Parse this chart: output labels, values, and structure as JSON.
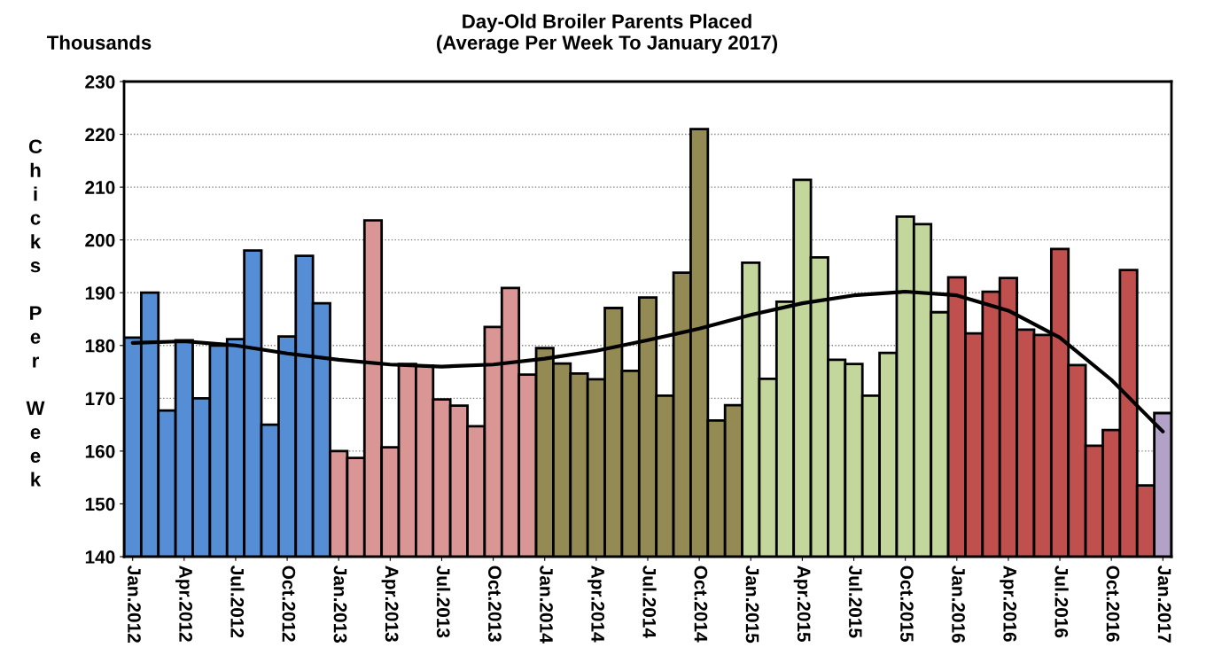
{
  "chart_data": {
    "type": "bar",
    "title": "Day-Old Broiler Parents Placed\n(Average Per Week To January 2017)",
    "ylabel": "Chicks Per Week",
    "annotations": [
      "Thousands"
    ],
    "categories": [
      "Jan.2012",
      null,
      null,
      "Apr.2012",
      null,
      null,
      "Jul.2012",
      null,
      null,
      "Oct.2012",
      null,
      null,
      "Jan.2013",
      null,
      null,
      "Apr.2013",
      null,
      null,
      "Jul.2013",
      null,
      null,
      "Oct.2013",
      null,
      null,
      "Jan.2014",
      null,
      null,
      "Apr.2014",
      null,
      null,
      "Jul.2014",
      null,
      null,
      "Oct.2014",
      null,
      null,
      "Jan.2015",
      null,
      null,
      "Apr.2015",
      null,
      null,
      "Jul.2015",
      null,
      null,
      "Oct.2015",
      null,
      null,
      "Jan.2016",
      null,
      null,
      "Apr.2016",
      null,
      null,
      "Jul.2016",
      null,
      null,
      "Oct.2016",
      null,
      null,
      "Jan.2017"
    ],
    "series": [
      {
        "values": [
          181.5,
          190,
          167.7,
          181,
          170,
          180,
          181.2,
          198,
          165,
          181.7,
          197,
          188,
          160,
          158.7,
          203.7,
          160.7,
          176.5,
          176.2,
          169.8,
          168.6,
          164.7,
          183.5,
          190.9,
          174.5,
          179.5,
          176.6,
          174.7,
          173.6,
          187.1,
          175.2,
          189.1,
          170.5,
          193.8,
          221,
          165.8,
          168.7,
          195.7,
          173.7,
          188.3,
          211.4,
          196.7,
          177.3,
          176.5,
          170.5,
          178.6,
          204.4,
          203,
          186.3,
          192.9,
          182.3,
          190.2,
          192.8,
          183,
          182,
          198.3,
          176.3,
          161,
          164,
          194.3,
          153.5,
          167.2
        ],
        "colors": [
          "#558ed5",
          "#558ed5",
          "#558ed5",
          "#558ed5",
          "#558ed5",
          "#558ed5",
          "#558ed5",
          "#558ed5",
          "#558ed5",
          "#558ed5",
          "#558ed5",
          "#558ed5",
          "#d99694",
          "#d99694",
          "#d99694",
          "#d99694",
          "#d99694",
          "#d99694",
          "#d99694",
          "#d99694",
          "#d99694",
          "#d99694",
          "#d99694",
          "#d99694",
          "#948a54",
          "#948a54",
          "#948a54",
          "#948a54",
          "#948a54",
          "#948a54",
          "#948a54",
          "#948a54",
          "#948a54",
          "#948a54",
          "#948a54",
          "#948a54",
          "#c3d69b",
          "#c3d69b",
          "#c3d69b",
          "#c3d69b",
          "#c3d69b",
          "#c3d69b",
          "#c3d69b",
          "#c3d69b",
          "#c3d69b",
          "#c3d69b",
          "#c3d69b",
          "#c3d69b",
          "#c0504d",
          "#c0504d",
          "#c0504d",
          "#c0504d",
          "#c0504d",
          "#c0504d",
          "#c0504d",
          "#c0504d",
          "#c0504d",
          "#c0504d",
          "#c0504d",
          "#c0504d",
          "#b3a2c7"
        ]
      },
      {
        "type": "line",
        "color": "#000000",
        "x": [
          "Jan.2012",
          "Apr.2012",
          "Jul.2012",
          "Oct.2012",
          "Jan.2013",
          "Apr.2013",
          "Jul.2013",
          "Oct.2013",
          "Jan.2014",
          "Apr.2014",
          "Jul.2014",
          "Oct.2014",
          "Jan.2015",
          "Apr.2015",
          "Jul.2015",
          "Oct.2015",
          "Jan.2016",
          "Apr.2016",
          "Jul.2016",
          "Oct.2016",
          "Jan.2017"
        ],
        "values": [
          180.5,
          180.8,
          180,
          178.5,
          177.3,
          176.4,
          176,
          176.4,
          177.5,
          179,
          181,
          183.2,
          185.8,
          188,
          189.5,
          190.2,
          189.5,
          186.6,
          181.5,
          173.5,
          163.7
        ]
      }
    ],
    "ylim": [
      140,
      230
    ],
    "yticks": [
      140,
      150,
      160,
      170,
      180,
      190,
      200,
      210,
      220,
      230
    ],
    "grid": "y",
    "legend": false
  }
}
